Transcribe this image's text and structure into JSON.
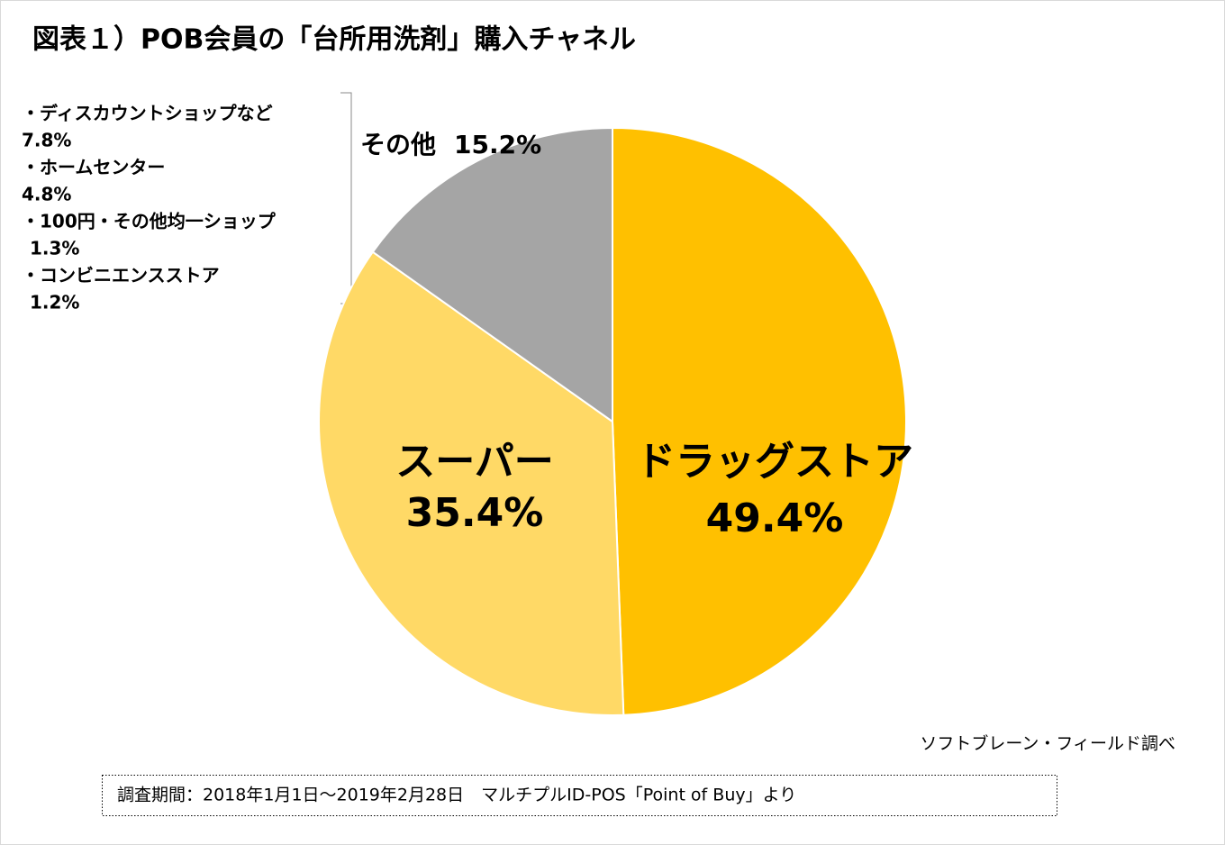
{
  "chart_data": {
    "type": "pie",
    "title": "図表１）POB会員の「台所用洗剤」購入チャネル",
    "categories": [
      "ドラッグストア",
      "スーパー",
      "その他"
    ],
    "values": [
      49.4,
      35.4,
      15.2
    ],
    "value_labels": [
      "49.4%",
      "35.4%",
      "15.2%"
    ],
    "colors": [
      "#ffc000",
      "#ffd966",
      "#a5a5a5"
    ],
    "breakdown": [
      {
        "name": "・ディスカウントショップなど",
        "value": "7.8%"
      },
      {
        "name": "・ホームセンター",
        "value": "4.8%"
      },
      {
        "name": "・100円・その他均一ショップ",
        "value": "1.3%"
      },
      {
        "name": "・コンビニエンスストア",
        "value": "1.2%"
      }
    ],
    "source": "ソフトブレーン・フィールド調べ",
    "note": "調査期間：2018年1月1日～2019年2月28日　マルチプルID-POS「Point of Buy」より"
  }
}
